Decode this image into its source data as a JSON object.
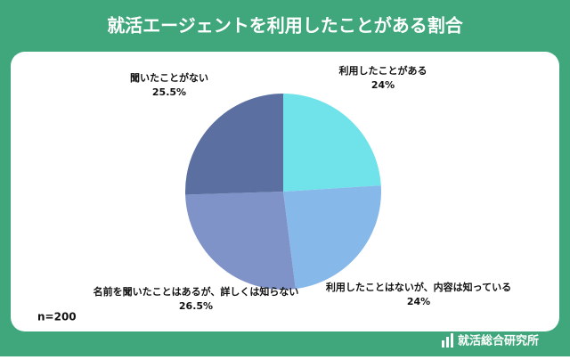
{
  "chart_data": {
    "type": "pie",
    "title": "就活エージェントを利用したことがある割合",
    "categories": [
      "利用したことがある",
      "利用したことはないが、内容は知っている",
      "名前を聞いたことはあるが、詳しくは知らない",
      "聞いたことがない"
    ],
    "values": [
      24,
      24,
      26.5,
      25.5
    ],
    "value_labels": [
      "24%",
      "24%",
      "26.5%",
      "25.5%"
    ],
    "colors": [
      "#6fe3e9",
      "#86b9ea",
      "#7f93c8",
      "#5b6fa1"
    ],
    "note": "n=200",
    "source": "就活総合研究所"
  }
}
